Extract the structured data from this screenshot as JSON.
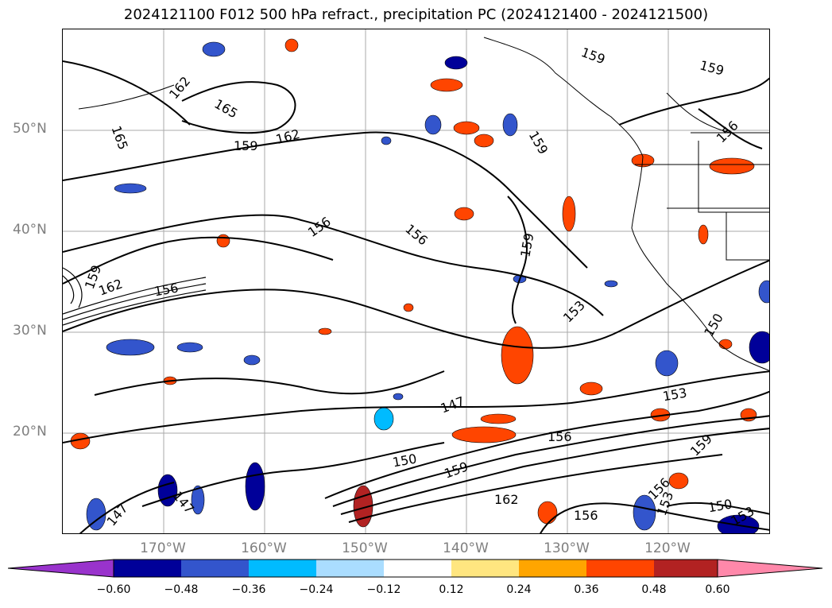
{
  "title": "2024121100 F012 500 hPa refract., precipitation PC (2024121400 - 2024121500)",
  "lat_labels": [
    "50°N",
    "40°N",
    "30°N",
    "20°N"
  ],
  "lon_labels": [
    "170°W",
    "160°W",
    "150°W",
    "140°W",
    "130°W",
    "120°W"
  ],
  "contour_labels": [
    "159",
    "159",
    "162",
    "165",
    "165",
    "162",
    "159",
    "156",
    "159",
    "156",
    "156",
    "159",
    "159",
    "162",
    "156",
    "153",
    "150",
    "147",
    "153",
    "156",
    "150",
    "159",
    "162",
    "156",
    "147",
    "147",
    "156",
    "153",
    "150",
    "153",
    "159"
  ],
  "colorbar": {
    "ticks": [
      "−0.60",
      "−0.48",
      "−0.36",
      "−0.24",
      "−0.12",
      "0.12",
      "0.24",
      "0.36",
      "0.48",
      "0.60"
    ],
    "colors": [
      "#9933cc",
      "#000099",
      "#3355cc",
      "#00bbff",
      "#aaddff",
      "#ffffff",
      "#ffe680",
      "#ffa500",
      "#ff4500",
      "#b22222",
      "#ff88aa"
    ]
  }
}
